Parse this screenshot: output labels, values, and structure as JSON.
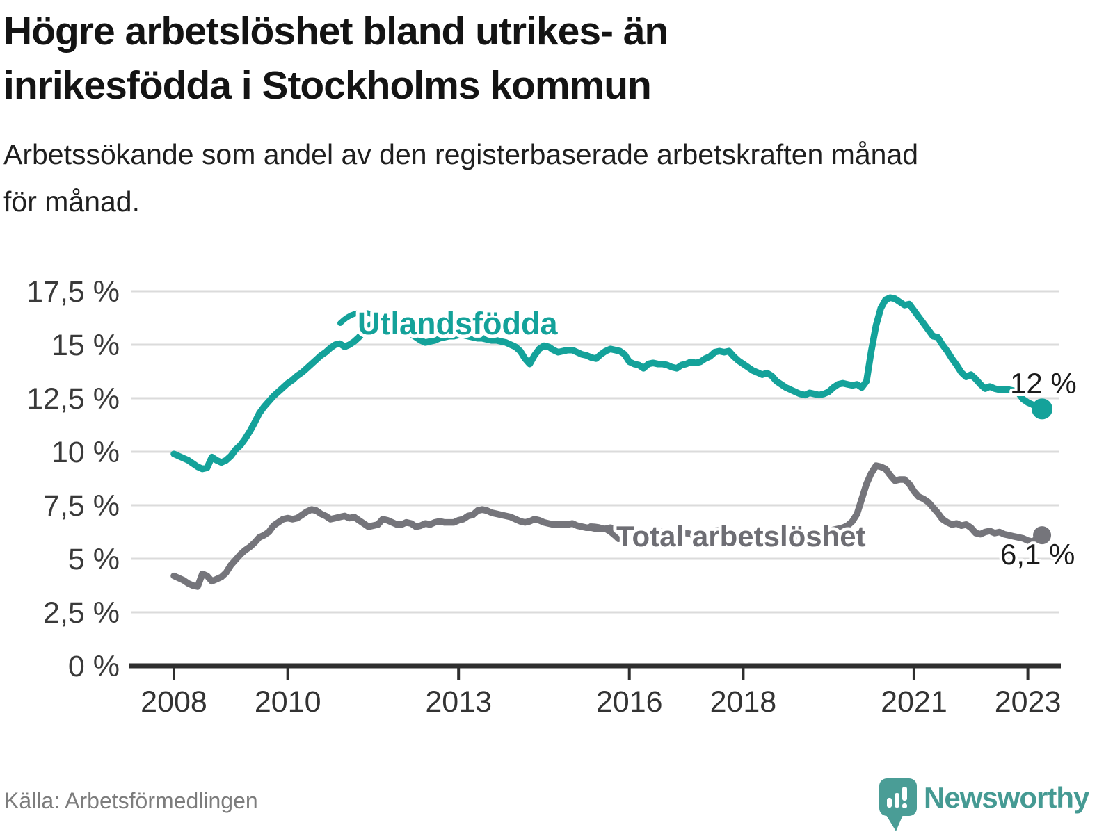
{
  "header": {
    "title_lines": [
      "Högre arbetslöshet bland utrikes- än",
      "inrikesfödda i Stockholms kommun"
    ],
    "subtitle_lines": [
      "Arbetssökande som andel av den registerbaserade arbetskraften månad",
      "för månad."
    ]
  },
  "footer": {
    "source": "Källa: Arbetsförmedlingen",
    "brand": "Newsworthy"
  },
  "colors": {
    "teal": "#14a29a",
    "gray": "#75757b",
    "gray_label": "#6e6e74",
    "grid": "#dbdbdb",
    "axis": "#2e2e2e",
    "tick_text": "#3a3a3a",
    "end_label_text": "#1b1b1b",
    "brand_teal": "#459a93",
    "background": "#ffffff"
  },
  "chart_data": {
    "type": "line",
    "title": "Högre arbetslöshet bland utrikes- än inrikesfödda i Stockholms kommun",
    "subtitle": "Arbetssökande som andel av den registerbaserade arbetskraften månad för månad.",
    "xlabel": "",
    "ylabel": "",
    "grid": "horizontal",
    "legend_position": "inline-labels",
    "x_start_year": 2008,
    "x_step_months": 1,
    "xlim": [
      2007.25,
      2023.55
    ],
    "ylim": [
      0,
      18.5
    ],
    "x_ticks": [
      {
        "value": 2008,
        "label": "2008"
      },
      {
        "value": 2010,
        "label": "2010"
      },
      {
        "value": 2013,
        "label": "2013"
      },
      {
        "value": 2016,
        "label": "2016"
      },
      {
        "value": 2018,
        "label": "2018"
      },
      {
        "value": 2021,
        "label": "2021"
      },
      {
        "value": 2023,
        "label": "2023"
      }
    ],
    "y_ticks": [
      {
        "value": 0,
        "label": "0 %"
      },
      {
        "value": 2.5,
        "label": "2,5 %"
      },
      {
        "value": 5,
        "label": "5 %"
      },
      {
        "value": 7.5,
        "label": "7,5 %"
      },
      {
        "value": 10,
        "label": "10 %"
      },
      {
        "value": 12.5,
        "label": "12,5 %"
      },
      {
        "value": 15,
        "label": "15 %"
      },
      {
        "value": 17.5,
        "label": "17,5 %"
      }
    ],
    "series": [
      {
        "name": "Utlandsfödda",
        "color": "#14a29a",
        "end_label": "12 %",
        "end_value": 12.0,
        "values": [
          9.9,
          9.8,
          9.7,
          9.6,
          9.45,
          9.3,
          9.2,
          9.25,
          9.75,
          9.6,
          9.5,
          9.6,
          9.8,
          10.1,
          10.3,
          10.6,
          10.95,
          11.35,
          11.8,
          12.1,
          12.35,
          12.6,
          12.8,
          13.0,
          13.2,
          13.35,
          13.55,
          13.7,
          13.9,
          14.1,
          14.3,
          14.5,
          14.65,
          14.85,
          15.0,
          15.05,
          14.9,
          15.0,
          15.15,
          15.35,
          15.6,
          15.85,
          16.0,
          16.1,
          16.15,
          16.1,
          16.05,
          15.95,
          15.8,
          15.65,
          15.5,
          15.35,
          15.2,
          15.1,
          15.15,
          15.2,
          15.3,
          15.35,
          15.4,
          15.4,
          15.45,
          15.45,
          15.4,
          15.35,
          15.3,
          15.3,
          15.25,
          15.2,
          15.2,
          15.15,
          15.1,
          15.0,
          14.9,
          14.7,
          14.35,
          14.1,
          14.5,
          14.8,
          14.95,
          14.9,
          14.75,
          14.65,
          14.7,
          14.75,
          14.75,
          14.65,
          14.55,
          14.5,
          14.4,
          14.35,
          14.55,
          14.7,
          14.8,
          14.75,
          14.7,
          14.55,
          14.2,
          14.1,
          14.05,
          13.9,
          14.1,
          14.15,
          14.1,
          14.1,
          14.05,
          13.95,
          13.9,
          14.05,
          14.1,
          14.2,
          14.15,
          14.2,
          14.35,
          14.45,
          14.65,
          14.7,
          14.65,
          14.7,
          14.45,
          14.25,
          14.1,
          13.95,
          13.8,
          13.7,
          13.6,
          13.68,
          13.55,
          13.3,
          13.15,
          13.0,
          12.9,
          12.8,
          12.7,
          12.65,
          12.75,
          12.7,
          12.65,
          12.7,
          12.8,
          13.0,
          13.15,
          13.2,
          13.15,
          13.1,
          13.15,
          13.0,
          13.3,
          14.7,
          15.9,
          16.7,
          17.1,
          17.2,
          17.15,
          17.0,
          16.85,
          16.9,
          16.6,
          16.3,
          16.0,
          15.7,
          15.4,
          15.35,
          15.0,
          14.7,
          14.35,
          14.05,
          13.7,
          13.5,
          13.6,
          13.4,
          13.15,
          12.95,
          13.05,
          12.95,
          12.9,
          12.9,
          12.9,
          12.85,
          12.75,
          12.45,
          12.3,
          12.2,
          12.05,
          12.0
        ]
      },
      {
        "name": "Total arbetslöshet",
        "color": "#75757b",
        "end_label": "6,1 %",
        "end_value": 6.1,
        "values": [
          4.2,
          4.1,
          4.0,
          3.85,
          3.75,
          3.7,
          4.3,
          4.2,
          3.95,
          4.05,
          4.15,
          4.35,
          4.7,
          4.95,
          5.2,
          5.4,
          5.55,
          5.75,
          6.0,
          6.1,
          6.25,
          6.55,
          6.7,
          6.85,
          6.9,
          6.85,
          6.9,
          7.05,
          7.2,
          7.3,
          7.25,
          7.1,
          7.0,
          6.85,
          6.9,
          6.95,
          7.0,
          6.9,
          6.95,
          6.8,
          6.65,
          6.5,
          6.55,
          6.6,
          6.85,
          6.8,
          6.7,
          6.6,
          6.6,
          6.7,
          6.65,
          6.5,
          6.55,
          6.65,
          6.6,
          6.7,
          6.75,
          6.7,
          6.7,
          6.7,
          6.8,
          6.85,
          7.0,
          7.05,
          7.25,
          7.3,
          7.25,
          7.15,
          7.1,
          7.05,
          7.0,
          6.95,
          6.85,
          6.75,
          6.7,
          6.75,
          6.85,
          6.8,
          6.7,
          6.65,
          6.6,
          6.6,
          6.6,
          6.6,
          6.65,
          6.55,
          6.5,
          6.45,
          6.45,
          6.4,
          6.4,
          6.4,
          6.45,
          6.4,
          6.35,
          6.35,
          6.3,
          6.25,
          6.2,
          6.15,
          6.2,
          6.25,
          6.3,
          6.3,
          6.25,
          6.2,
          6.15,
          6.2,
          6.2,
          6.15,
          6.1,
          6.15,
          6.2,
          6.25,
          6.3,
          6.35,
          6.3,
          6.25,
          6.2,
          6.15,
          6.1,
          6.05,
          6.0,
          5.95,
          5.9,
          5.95,
          6.0,
          6.0,
          5.95,
          5.9,
          5.85,
          5.9,
          5.95,
          6.0,
          6.0,
          6.05,
          6.1,
          6.2,
          6.3,
          6.35,
          6.4,
          6.45,
          6.55,
          6.75,
          7.1,
          7.8,
          8.5,
          9.0,
          9.35,
          9.3,
          9.2,
          8.9,
          8.65,
          8.7,
          8.7,
          8.5,
          8.15,
          7.9,
          7.8,
          7.65,
          7.4,
          7.15,
          6.85,
          6.7,
          6.6,
          6.65,
          6.55,
          6.6,
          6.45,
          6.2,
          6.15,
          6.25,
          6.3,
          6.2,
          6.25,
          6.15,
          6.1,
          6.05,
          6.0,
          5.95,
          5.85,
          5.8,
          5.95,
          6.1
        ]
      }
    ]
  }
}
